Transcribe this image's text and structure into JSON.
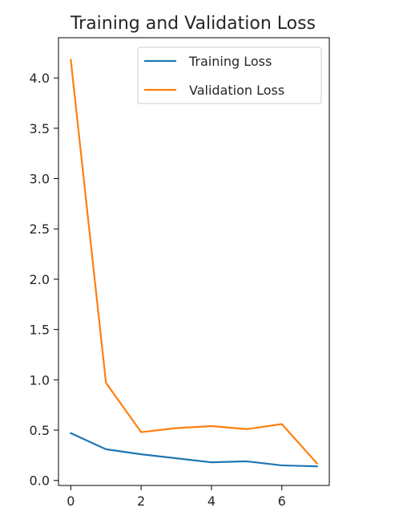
{
  "chart_data": {
    "type": "line",
    "title": "Training and Validation Loss",
    "xlabel": "",
    "ylabel": "",
    "x": [
      0,
      1,
      2,
      3,
      4,
      5,
      6,
      7
    ],
    "series": [
      {
        "name": "Training Loss",
        "color": "#1f77b4",
        "values": [
          0.47,
          0.31,
          0.26,
          0.22,
          0.18,
          0.19,
          0.15,
          0.14
        ]
      },
      {
        "name": "Validation Loss",
        "color": "#ff7f0e",
        "values": [
          4.18,
          0.97,
          0.48,
          0.52,
          0.54,
          0.51,
          0.56,
          0.17
        ]
      }
    ],
    "xticks": [
      0,
      2,
      4,
      6
    ],
    "xtick_labels": [
      "0",
      "2",
      "4",
      "6"
    ],
    "yticks": [
      0.0,
      0.5,
      1.0,
      1.5,
      2.0,
      2.5,
      3.0,
      3.5,
      4.0
    ],
    "ytick_labels": [
      "0.0",
      "0.5",
      "1.0",
      "1.5",
      "2.0",
      "2.5",
      "3.0",
      "3.5",
      "4.0"
    ],
    "xlim": [
      -0.35,
      7.35
    ],
    "ylim": [
      -0.05,
      4.4
    ],
    "grid": false,
    "legend_position": "upper right"
  }
}
